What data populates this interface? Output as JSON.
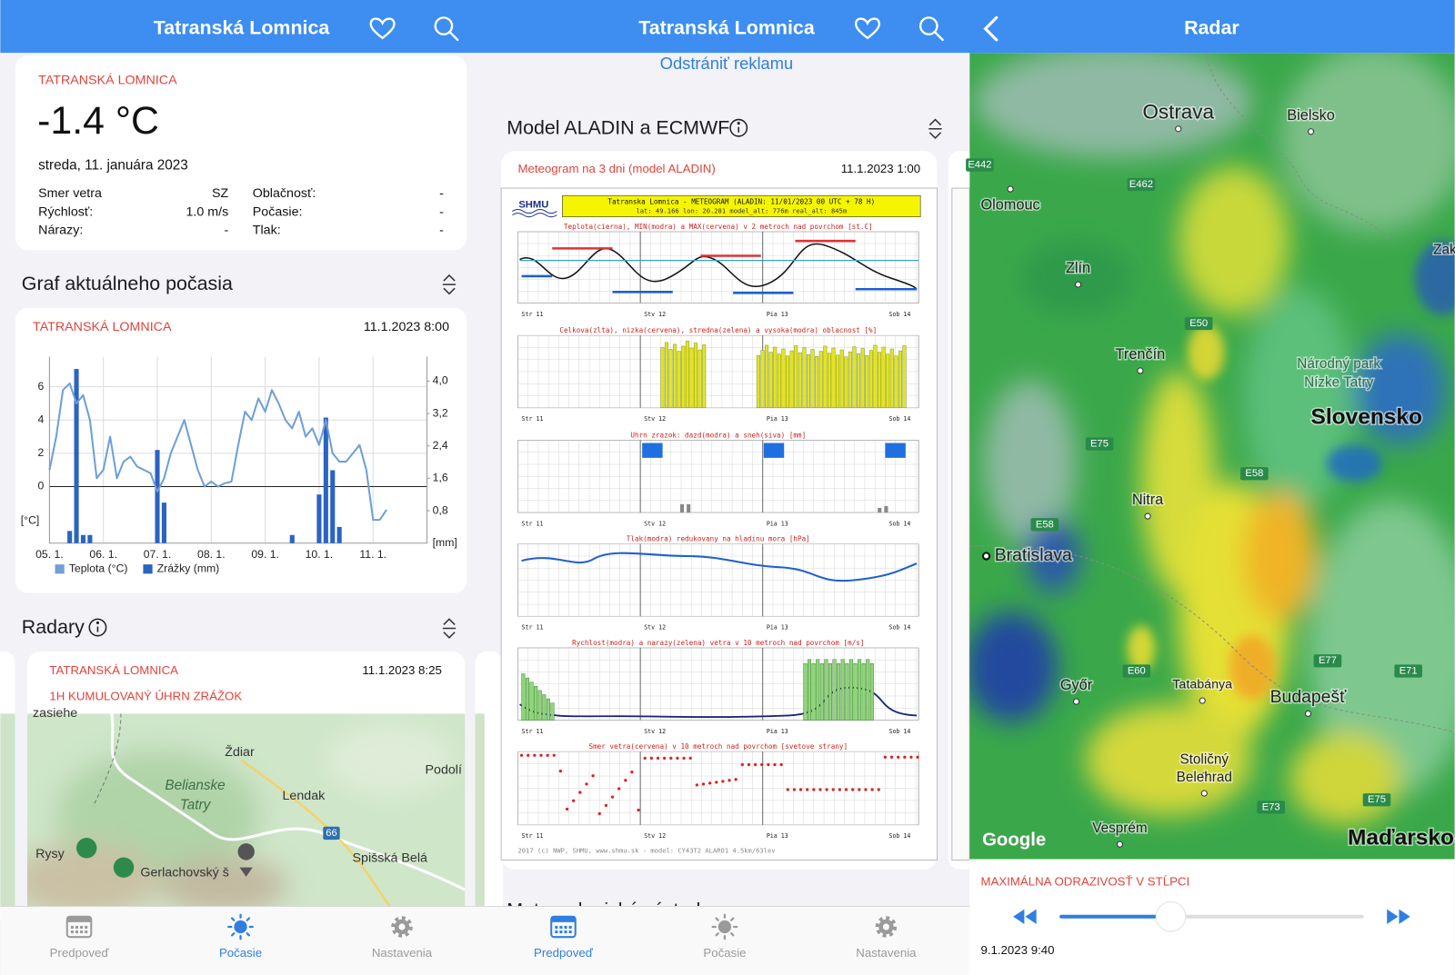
{
  "screens": [
    {
      "header": {
        "title": "Tatranská Lomnica"
      },
      "current": {
        "location": "TATRANSKÁ LOMNICA",
        "temperature": "-1.4 °C",
        "date": "streda, 11. januára 2023",
        "rows": [
          [
            "Smer vetra",
            "SZ",
            "Oblačnosť:",
            "-"
          ],
          [
            "Rýchlosť:",
            "1.0 m/s",
            "Počasie:",
            "-"
          ],
          [
            "Nárazy:",
            "-",
            "Tlak:",
            "-"
          ]
        ]
      },
      "graph": {
        "title": "Graf aktuálneho počasia",
        "location": "TATRANSKÁ LOMNICA",
        "timestamp": "11.1.2023 8:00",
        "chart_data": {
          "type": "line",
          "y_label": "[°C]",
          "y2_label": "[mm]",
          "grid": true,
          "xlim": [
            0,
            7
          ],
          "xticks": [
            {
              "value": 0,
              "label": "05. 1."
            },
            {
              "value": 1,
              "label": "06. 1."
            },
            {
              "value": 2,
              "label": "07. 1."
            },
            {
              "value": 3,
              "label": "08. 1."
            },
            {
              "value": 4,
              "label": "09. 1."
            },
            {
              "value": 5,
              "label": "10. 1."
            },
            {
              "value": 6,
              "label": "11. 1."
            }
          ],
          "ylim": [
            -3.4,
            7.8
          ],
          "yticks": [
            0,
            2,
            4,
            6
          ],
          "y2lim": [
            0,
            4.6
          ],
          "y2ticks": [
            {
              "value": 0.8,
              "label": "0,8"
            },
            {
              "value": 1.6,
              "label": "1,6"
            },
            {
              "value": 2.4,
              "label": "2,4"
            },
            {
              "value": 3.2,
              "label": "3,2"
            },
            {
              "value": 4,
              "label": "4,0"
            }
          ],
          "x": [
            0,
            0.125,
            0.25,
            0.375,
            0.5,
            0.625,
            0.75,
            0.875,
            1,
            1.125,
            1.25,
            1.375,
            1.5,
            1.625,
            1.75,
            1.875,
            2,
            2.125,
            2.25,
            2.375,
            2.5,
            2.625,
            2.75,
            2.875,
            3,
            3.125,
            3.25,
            3.375,
            3.5,
            3.625,
            3.75,
            3.875,
            4,
            4.125,
            4.25,
            4.375,
            4.5,
            4.625,
            4.75,
            4.875,
            5,
            5.125,
            5.25,
            5.375,
            5.5,
            5.625,
            5.75,
            5.875,
            6,
            6.125,
            6.25
          ],
          "series": [
            {
              "name": "Teplota (°C)",
              "color": "#6f9fd8",
              "values": [
                1,
                3,
                5.8,
                6.2,
                5,
                5.5,
                4,
                0.5,
                1,
                3,
                0.5,
                1.5,
                1.8,
                1.2,
                1,
                0.8,
                -0.3,
                0.5,
                2,
                3,
                4,
                2.5,
                1,
                0,
                0.3,
                0,
                0.2,
                0.3,
                2.5,
                4.5,
                4,
                5.3,
                4.5,
                5.8,
                5,
                4,
                3.5,
                4.5,
                3,
                3.5,
                2.5,
                4,
                2,
                1.5,
                1.5,
                2,
                2.5,
                1,
                -2,
                -2,
                -1.4
              ]
            },
            {
              "name": "Zrážky (mm)",
              "color": "#2a63c2",
              "axis": "y2",
              "values": [
                0,
                0,
                0,
                0.3,
                4.3,
                0.2,
                0.2,
                0,
                0,
                0,
                0,
                0,
                0,
                0,
                0,
                0,
                2.3,
                1,
                0,
                0,
                0,
                0,
                0,
                0,
                0,
                0,
                0,
                0,
                0,
                0,
                0,
                0,
                0,
                0,
                0,
                0,
                0.2,
                0,
                0,
                0,
                1.2,
                3.1,
                1.8,
                0.4,
                0,
                0,
                0,
                0,
                0,
                0,
                0
              ]
            }
          ]
        }
      },
      "radar": {
        "title": "Radary",
        "location": "TATRANSKÁ LOMNICA",
        "timestamp": "11.1.2023 8:25",
        "subtitle": "1H KUMULOVANÝ ÚHRN ZRÁŽOK",
        "map_labels": [
          "zasiehe",
          "Ždiar",
          "Podolí",
          "Belianske",
          "Tatry",
          "Lendak",
          "66",
          "Rysy",
          "Gerlachovský š",
          "Spišská Belá"
        ]
      },
      "tabs": [
        "Predpoveď",
        "Počasie",
        "Nastavenia"
      ]
    },
    {
      "header": {
        "title": "Tatranská Lomnica"
      },
      "ad_link": "Odstrániť reklamu",
      "model": {
        "title": "Model ALADIN a ECMWF",
        "card_title": "Meteogram na 3 dni (model ALADIN)",
        "timestamp": "11.1.2023 1:00",
        "meteogram": {
          "logo": "SHMU",
          "header": "Tatranska Lomnica - METEOGRAM (ALADIN: 11/01/2023 00 UTC + 78 H)",
          "coords": "lat: 49.166   lon: 20.281   model_alt: 776m   real_alt: 845m",
          "panels": [
            "Teplota(cierna), MIN(modra) a MAX(cervena) v 2 metroch nad povrchom [st.C]",
            "Celkova(zlta), nizka(cervena), stredna(zelena) a vysoka(modra) oblacnost [%]",
            "Uhrn zrazok: dazd(modra) a sneh(siva) [mm]",
            "Tlak(modra) redukovany na hladinu mora [hPa]",
            "Rychlost(modra) a narazy(zelena) vetra v 10 metroch nad povrchom [m/s]",
            "Smer vetra(cervena) v 10 metroch nad povrchom [svetove strany]"
          ],
          "days": [
            "Str 11",
            "Stv 12",
            "Pia 13",
            "Sob 14"
          ],
          "footer": "2017 (c) NWP, SHMU, www.shmu.sk - model: CY43T2 ALARO1 4.5km/63lev"
        }
      },
      "warnings_title": "Meteorologické výstrahy",
      "tabs": [
        "Predpoveď",
        "Počasie",
        "Nastavenia"
      ]
    },
    {
      "header": {
        "title": "Radar"
      },
      "map_labels": [
        "Ostrava",
        "Bielsko",
        "Olomouc",
        "Zlín",
        "Trenčín",
        "Národný park",
        "Nízke Tatry",
        "Slovensko",
        "Nitra",
        "Bratislava",
        "Győr",
        "Tatabánya",
        "Budapešť",
        "Stoličný",
        "Belehrad",
        "Vesprém",
        "Maďarsko",
        "E462",
        "E442",
        "E50",
        "E75",
        "E58",
        "E58",
        "E60",
        "E77",
        "E71",
        "E73",
        "E75",
        "Zako",
        "Google"
      ],
      "caption": "MAXIMÁLNA ODRAZIVOSŤ V STĹPCI",
      "time": "9.1.2023 9:40"
    }
  ]
}
